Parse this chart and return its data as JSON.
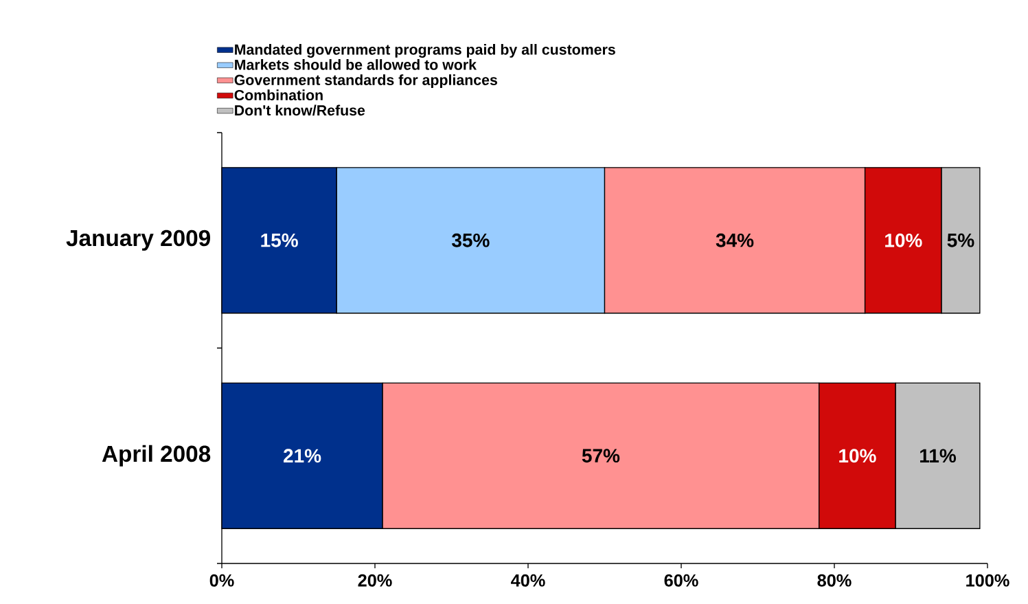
{
  "chart_data": {
    "type": "bar",
    "orientation": "horizontal",
    "stacked": true,
    "categories": [
      "January 2009",
      "April 2008"
    ],
    "series": [
      {
        "name": "Mandated government programs paid by all customers",
        "color": "#00308c",
        "values": [
          15,
          21
        ],
        "value_labels": [
          "15%",
          "21%"
        ]
      },
      {
        "name": "Markets should be allowed to work",
        "color": "#99ccff",
        "values": [
          35,
          null
        ],
        "value_labels": [
          "35%",
          null
        ]
      },
      {
        "name": "Government standards for appliances",
        "color": "#ff9191",
        "values": [
          34,
          57
        ],
        "value_labels": [
          "34%",
          "57%"
        ]
      },
      {
        "name": "Combination",
        "color": "#d10a0a",
        "values": [
          10,
          10
        ],
        "value_labels": [
          "10%",
          "10%"
        ]
      },
      {
        "name": "Don't know/Refuse",
        "color": "#c0c0c0",
        "values": [
          5,
          11
        ],
        "value_labels": [
          "5%",
          "11%"
        ]
      }
    ],
    "xlim": [
      0,
      100
    ],
    "xticks": [
      {
        "value": 0,
        "label": "0%"
      },
      {
        "value": 20,
        "label": "20%"
      },
      {
        "value": 40,
        "label": "40%"
      },
      {
        "value": 60,
        "label": "60%"
      },
      {
        "value": 80,
        "label": "80%"
      },
      {
        "value": 100,
        "label": "100%"
      }
    ],
    "legend": "top left",
    "grid": false
  }
}
